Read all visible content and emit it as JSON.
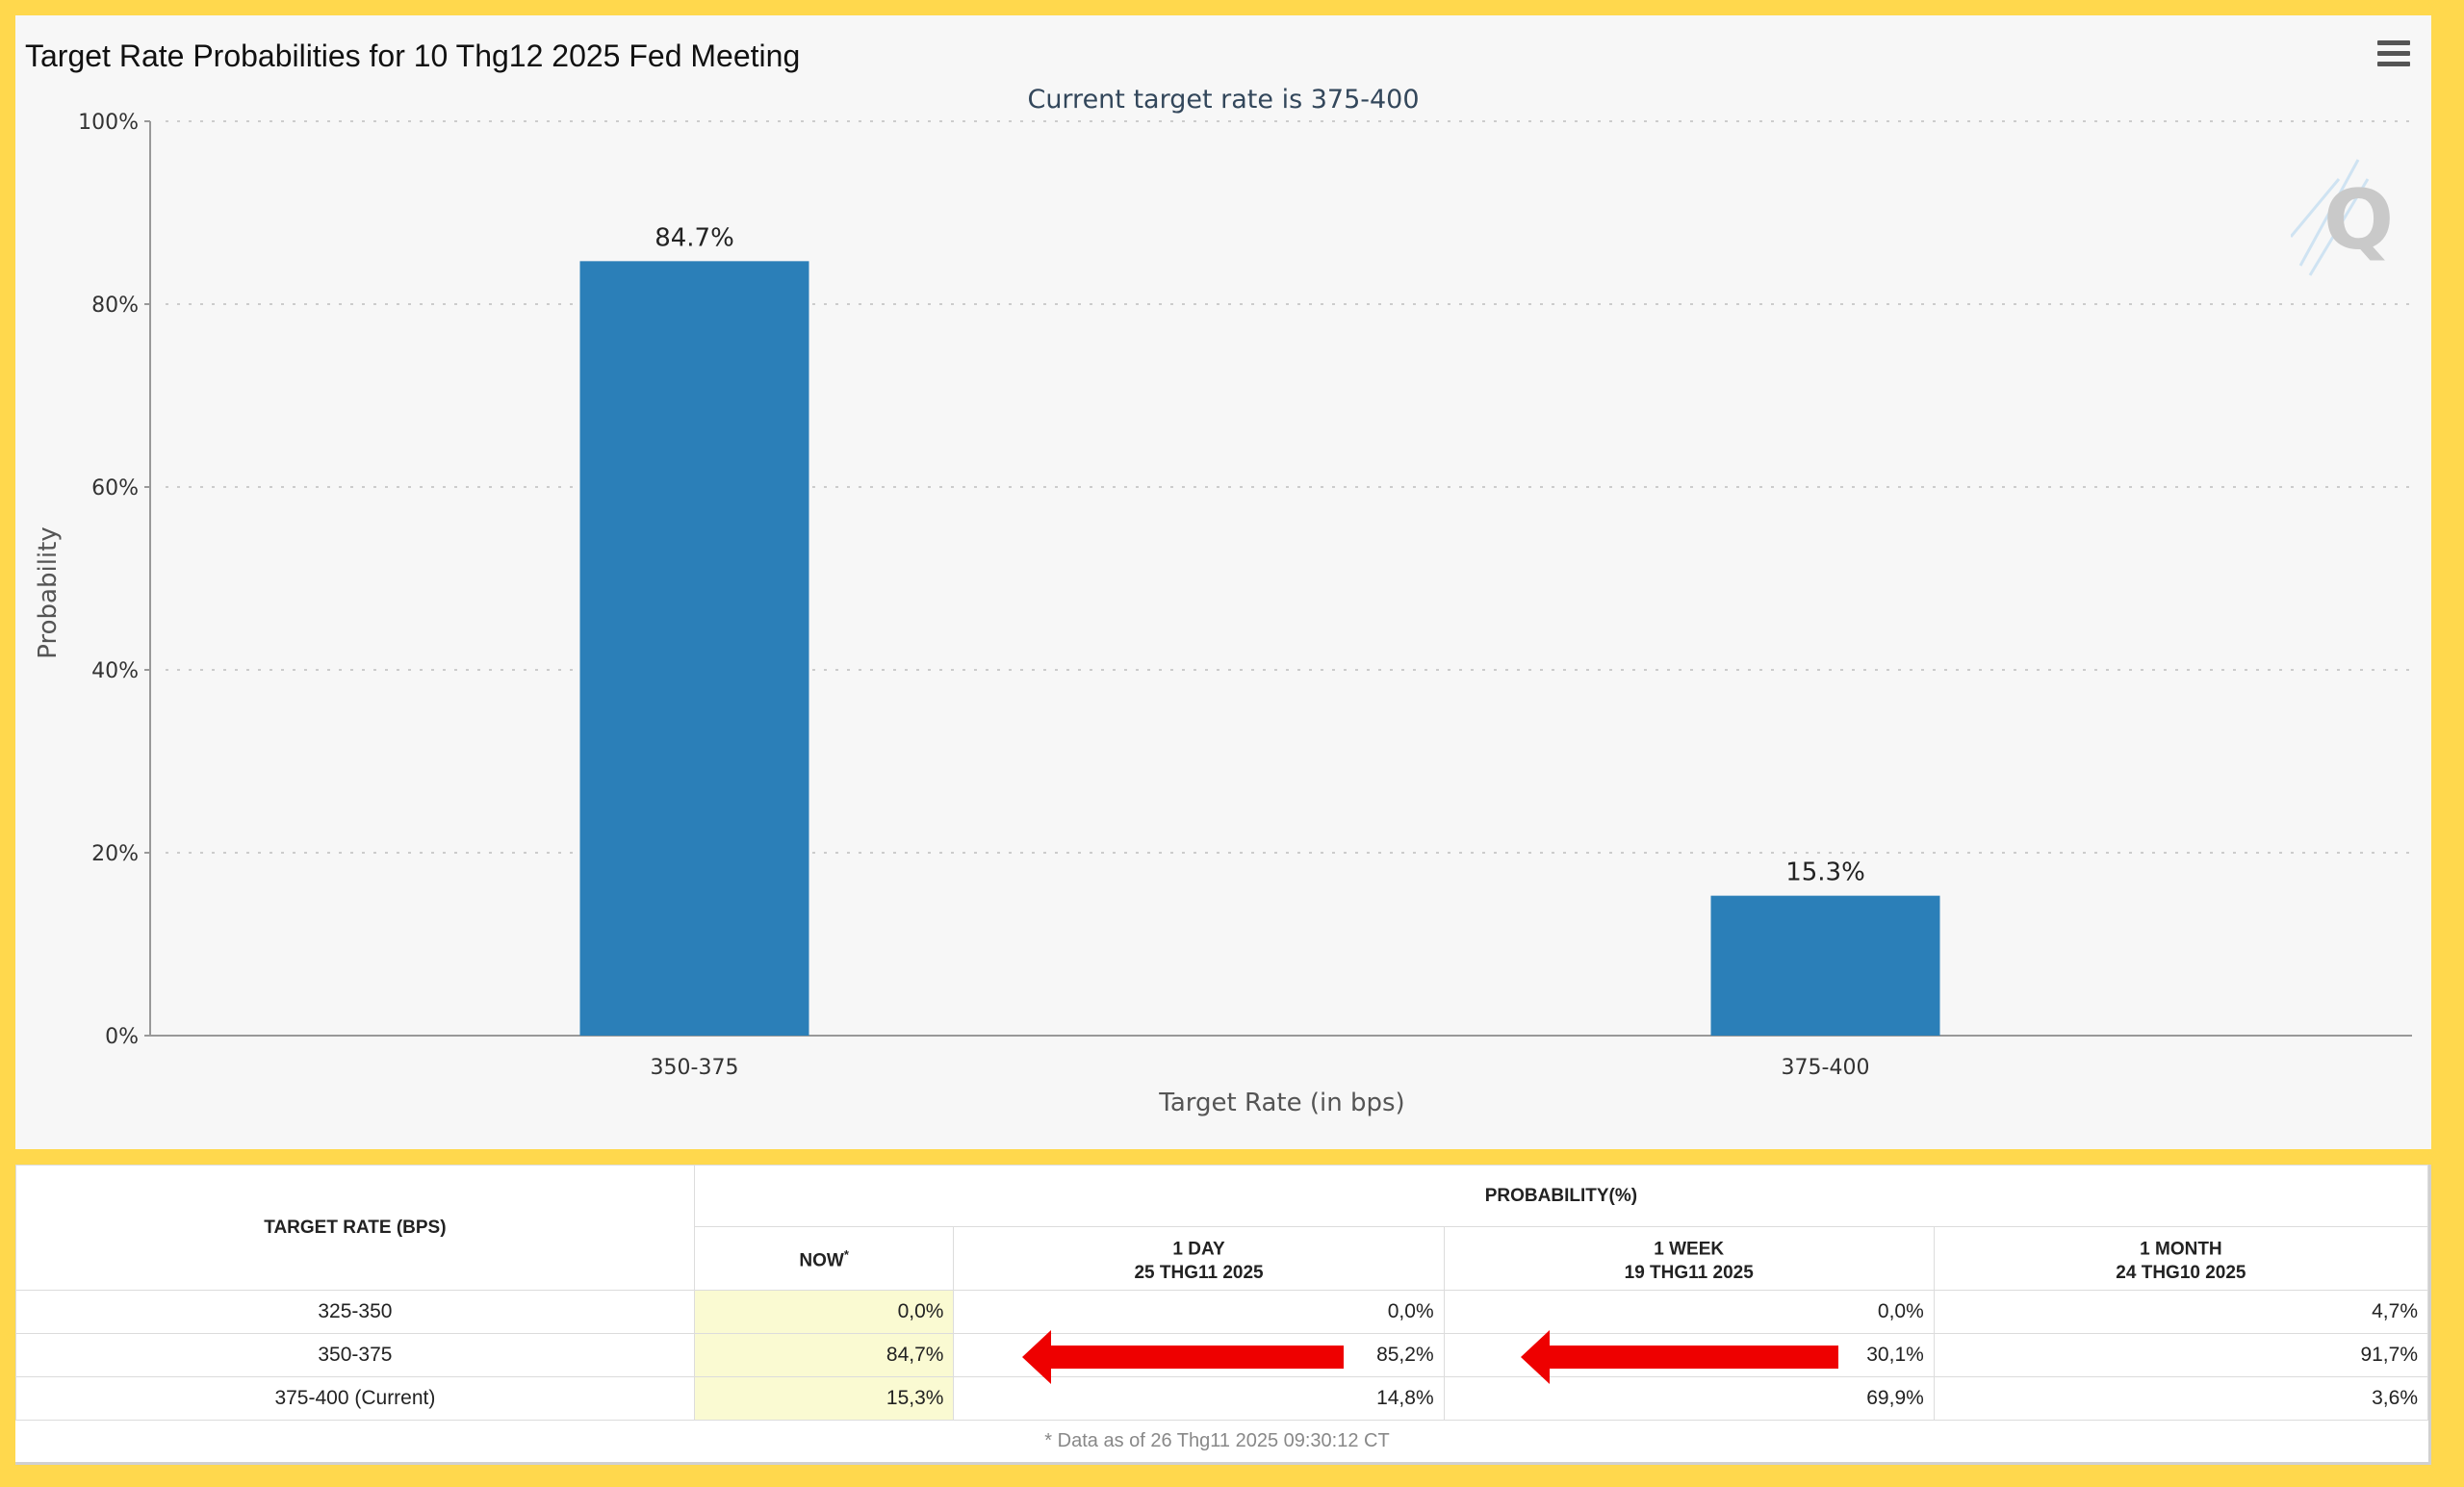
{
  "chart": {
    "title": "Target Rate Probabilities for 10 Thg12 2025 Fed Meeting",
    "subtitle": "Current target rate is 375-400",
    "menu_icon": "hamburger-menu-icon",
    "watermark_icon": "cme-q-logo-icon"
  },
  "chart_data": {
    "type": "bar",
    "title": "Target Rate Probabilities for 10 Thg12 2025 Fed Meeting",
    "subtitle": "Current target rate is 375-400",
    "categories": [
      "350-375",
      "375-400"
    ],
    "values": [
      84.7,
      15.3
    ],
    "data_labels": [
      "84.7%",
      "15.3%"
    ],
    "xlabel": "Target Rate (in bps)",
    "ylabel": "Probability",
    "yticks": [
      "0%",
      "20%",
      "40%",
      "60%",
      "80%",
      "100%"
    ],
    "ylim": [
      0,
      100
    ],
    "grid": true,
    "legend": "none",
    "bar_color": "#2b7fb8"
  },
  "table": {
    "target_rate_header": "TARGET RATE (BPS)",
    "probability_header": "PROBABILITY(%)",
    "columns": [
      {
        "line1": "NOW",
        "line2": "",
        "sup": "*"
      },
      {
        "line1": "1 DAY",
        "line2": "25 THG11 2025",
        "sup": ""
      },
      {
        "line1": "1 WEEK",
        "line2": "19 THG11 2025",
        "sup": ""
      },
      {
        "line1": "1 MONTH",
        "line2": "24 THG10 2025",
        "sup": ""
      }
    ],
    "rows": [
      {
        "rate": "325-350",
        "values": [
          "0,0%",
          "0,0%",
          "0,0%",
          "4,7%"
        ]
      },
      {
        "rate": "350-375",
        "values": [
          "84,7%",
          "85,2%",
          "30,1%",
          "91,7%"
        ]
      },
      {
        "rate": "375-400 (Current)",
        "values": [
          "15,3%",
          "14,8%",
          "69,9%",
          "3,6%"
        ]
      }
    ],
    "footnote": "* Data as of 26 Thg11 2025 09:30:12 CT"
  },
  "annotations": {
    "arrow_color": "#ee0000",
    "arrow_icon": "red-left-arrow-icon"
  }
}
